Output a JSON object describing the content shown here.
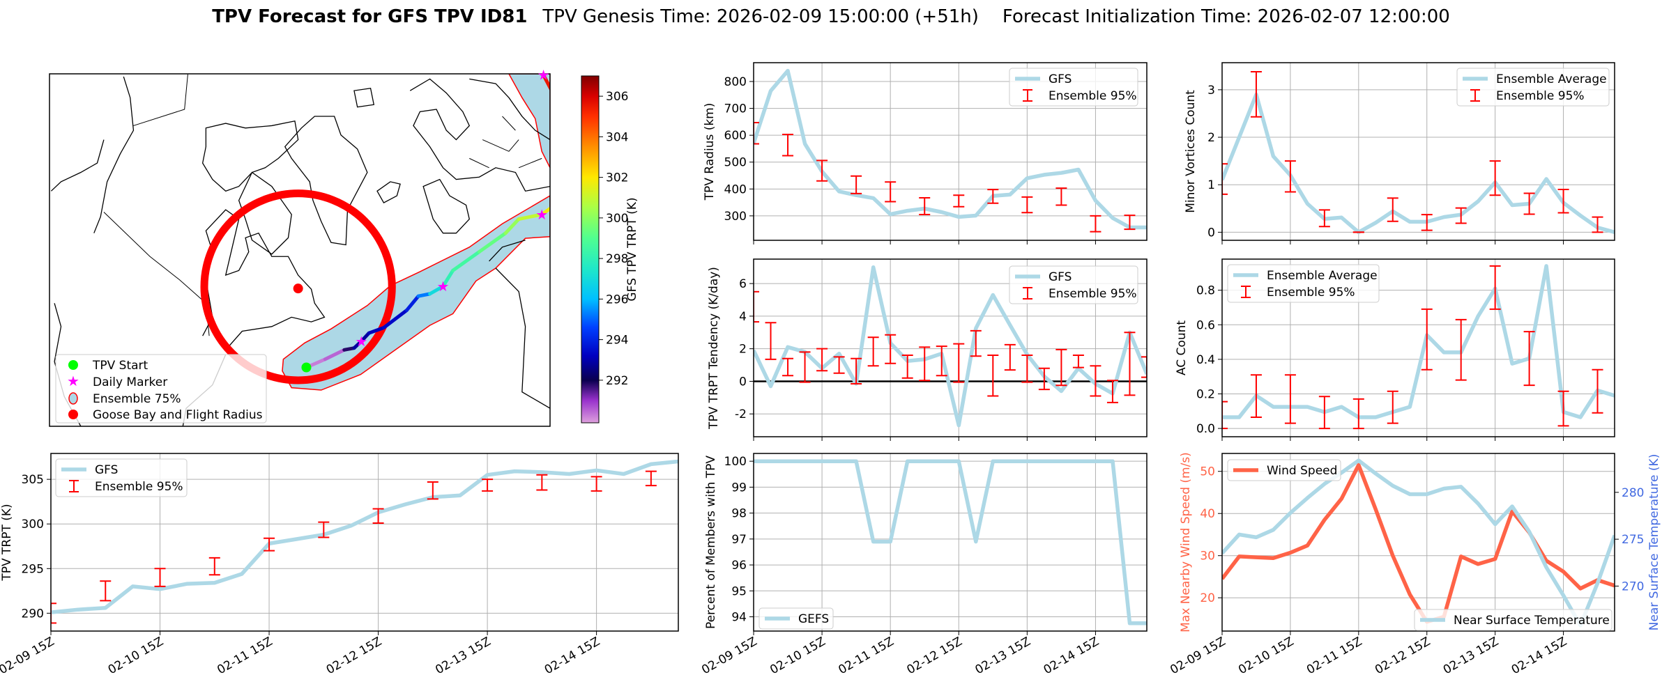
{
  "title": {
    "bold": "TPV Forecast for GFS TPV ID81",
    "genesis": "TPV Genesis Time: 2026-02-09 15:00:00 (+51h)",
    "init": "Forecast Initialization Time: 2026-02-07 12:00:00"
  },
  "colors": {
    "gfs_line": "#add8e6",
    "ensemble_bar": "#ff0000",
    "wind": "#ff6347",
    "temperature_axis": "#4169e1",
    "zero_line": "#000000"
  },
  "map": {
    "legend": [
      "TPV Start",
      "Daily Marker",
      "Ensemble 75%",
      "Goose Bay and Flight Radius"
    ],
    "colorbar": {
      "label": "GFS TPV TRPT (K)",
      "ticks": [
        "292",
        "294",
        "296",
        "298",
        "300",
        "302",
        "304",
        "306"
      ],
      "range": [
        289.9,
        307.0
      ]
    }
  },
  "chart_data": [
    {
      "id": "radius",
      "type": "line",
      "x": [
        "02-09 15Z",
        "02-09 21Z",
        "02-10 03Z",
        "02-10 09Z",
        "02-10 15Z",
        "02-10 21Z",
        "02-11 03Z",
        "02-11 09Z",
        "02-11 15Z",
        "02-11 21Z",
        "02-12 03Z",
        "02-12 09Z",
        "02-12 15Z",
        "02-12 21Z",
        "02-13 03Z",
        "02-13 09Z",
        "02-13 15Z",
        "02-13 21Z",
        "02-14 03Z",
        "02-14 09Z",
        "02-14 15Z",
        "02-14 21Z",
        "02-15 03Z",
        "02-15 09Z"
      ],
      "xticks": [],
      "ylabel": "TPV Radius (km)",
      "yticks": [
        300,
        400,
        500,
        600,
        700,
        800
      ],
      "ylim": [
        209,
        870
      ],
      "grid": true,
      "legend": "upper right",
      "series": [
        {
          "name": "GFS",
          "values": [
            570,
            765,
            840,
            568,
            465,
            391,
            377,
            366,
            306,
            319,
            327,
            314,
            296,
            301,
            374,
            379,
            440,
            453,
            460,
            472,
            357,
            292,
            257,
            257
          ]
        }
      ],
      "errorbars": {
        "name": "Ensemble 95%",
        "ranges": [
          [
            568,
            647
          ],
          null,
          [
            524,
            603
          ],
          null,
          [
            430,
            506
          ],
          null,
          [
            383,
            448
          ],
          null,
          [
            353,
            426
          ],
          null,
          [
            305,
            367
          ],
          null,
          [
            334,
            377
          ],
          null,
          [
            347,
            398
          ],
          null,
          [
            312,
            370
          ],
          null,
          [
            340,
            403
          ],
          null,
          [
            241,
            300
          ],
          null,
          [
            250,
            302
          ],
          null
        ]
      }
    },
    {
      "id": "tendency",
      "type": "line",
      "xticks": [],
      "ylabel": "TPV TRPT Tendency (K/day)",
      "yticks": [
        -2,
        0,
        2,
        4,
        6
      ],
      "ylim": [
        -3.4,
        7.5
      ],
      "grid": true,
      "legend": "upper right",
      "reference_line": 0,
      "series": [
        {
          "name": "GFS",
          "values": [
            1.9,
            -0.3,
            2.1,
            1.8,
            0.8,
            1.7,
            -0.15,
            7.0,
            2.35,
            1.25,
            1.35,
            1.7,
            -2.7,
            3.25,
            5.3,
            3.45,
            1.65,
            0.3,
            -0.6,
            0.8,
            -0.15,
            -0.75,
            3.0,
            0.45
          ]
        }
      ],
      "errorbars": {
        "name": "Ensemble 95%",
        "ranges": [
          [
            3.65,
            5.5
          ],
          [
            1.35,
            3.6
          ],
          [
            0.35,
            1.4
          ],
          [
            -0.05,
            1.8
          ],
          [
            0.65,
            2.0
          ],
          [
            0.5,
            1.5
          ],
          [
            -0.15,
            1.4
          ],
          [
            0.95,
            2.7
          ],
          [
            1.1,
            2.85
          ],
          [
            0.2,
            1.6
          ],
          [
            0.05,
            2.1
          ],
          [
            0.35,
            2.15
          ],
          [
            -0.05,
            2.3
          ],
          [
            1.55,
            3.1
          ],
          [
            -0.9,
            1.6
          ],
          [
            0.7,
            2.25
          ],
          [
            -0.05,
            1.6
          ],
          [
            -0.5,
            0.8
          ],
          [
            -0.25,
            1.95
          ],
          [
            0.85,
            1.6
          ],
          [
            -0.9,
            0.95
          ],
          [
            -1.3,
            0.05
          ],
          [
            -0.85,
            3.0
          ],
          [
            0.25,
            1.5
          ]
        ]
      }
    },
    {
      "id": "percent",
      "type": "line",
      "xticks": [
        "02-09 15Z",
        "02-10 15Z",
        "02-11 15Z",
        "02-12 15Z",
        "02-13 15Z",
        "02-14 15Z"
      ],
      "ylabel": "Percent of Members with TPV",
      "yticks": [
        94,
        95,
        96,
        97,
        98,
        99,
        100
      ],
      "ylim": [
        93.45,
        100.3
      ],
      "grid": true,
      "legend": "lower left",
      "series": [
        {
          "name": "GEFS",
          "values": [
            100,
            100,
            100,
            100,
            100,
            100,
            100,
            96.9,
            96.9,
            100,
            100,
            100,
            100,
            96.9,
            100,
            100,
            100,
            100,
            100,
            100,
            100,
            100,
            93.75,
            93.75
          ]
        }
      ]
    },
    {
      "id": "minor",
      "type": "line",
      "xticks": [],
      "ylabel": "Minor Vortices Count",
      "yticks": [
        0,
        1,
        2,
        3
      ],
      "ylim": [
        -0.17,
        3.57
      ],
      "grid": true,
      "legend": "upper right",
      "series": [
        {
          "name": "Ensemble Average",
          "values": [
            1.1,
            2.0,
            2.9,
            1.6,
            1.2,
            0.6,
            0.28,
            0.31,
            0.0,
            0.2,
            0.44,
            0.22,
            0.22,
            0.32,
            0.37,
            0.65,
            1.05,
            0.57,
            0.6,
            1.12,
            0.62,
            0.35,
            0.1,
            0.0
          ]
        }
      ],
      "errorbars": {
        "name": "Ensemble 95%",
        "ranges": [
          [
            0.8,
            1.44
          ],
          null,
          [
            2.43,
            3.38
          ],
          null,
          [
            0.85,
            1.5
          ],
          null,
          [
            0.12,
            0.47
          ],
          null,
          [
            0,
            0
          ],
          null,
          [
            0.23,
            0.72
          ],
          null,
          [
            0.04,
            0.37
          ],
          null,
          [
            0.19,
            0.51
          ],
          null,
          [
            0.78,
            1.5
          ],
          null,
          [
            0.38,
            0.82
          ],
          null,
          [
            0.41,
            0.9
          ],
          null,
          [
            0,
            0.32
          ],
          null
        ]
      }
    },
    {
      "id": "ac",
      "type": "line",
      "xticks": [],
      "ylabel": "AC Count",
      "yticks": [
        "0.0",
        "0.2",
        "0.4",
        "0.6",
        "0.8"
      ],
      "ylim": [
        -0.048,
        0.98
      ],
      "grid": true,
      "legend": "upper left",
      "series": [
        {
          "name": "Ensemble Average",
          "values": [
            0.065,
            0.065,
            0.19,
            0.125,
            0.125,
            0.125,
            0.095,
            0.125,
            0.065,
            0.065,
            0.095,
            0.125,
            0.54,
            0.44,
            0.44,
            0.65,
            0.81,
            0.375,
            0.405,
            0.94,
            0.095,
            0.065,
            0.22,
            0.19
          ]
        }
      ],
      "errorbars": {
        "name": "Ensemble 95%",
        "ranges": [
          [
            0,
            0.155
          ],
          null,
          [
            0.065,
            0.31
          ],
          null,
          [
            0.03,
            0.31
          ],
          null,
          [
            0,
            0.185
          ],
          null,
          [
            0,
            0.17
          ],
          null,
          [
            0.03,
            0.215
          ],
          null,
          [
            0.34,
            0.69
          ],
          null,
          [
            0.28,
            0.63
          ],
          null,
          [
            0.69,
            0.94
          ],
          null,
          [
            0.25,
            0.56
          ],
          null,
          [
            0.015,
            0.215
          ],
          null,
          [
            0.09,
            0.34
          ],
          null
        ]
      }
    },
    {
      "id": "wind",
      "type": "line",
      "xticks": [
        "02-09 15Z",
        "02-10 15Z",
        "02-11 15Z",
        "02-12 15Z",
        "02-13 15Z",
        "02-14 15Z"
      ],
      "ylabel": "Max Nearby Wind Speed (m/s)",
      "yticks": [
        20,
        30,
        40,
        50
      ],
      "ylim": [
        12.1,
        54.25
      ],
      "ylabel2": "Near Surface Temperature (K)",
      "yticks2": [
        270,
        275,
        280
      ],
      "ylim2": [
        265.2,
        284.15
      ],
      "grid": true,
      "series": [
        {
          "name": "Wind Speed",
          "axis": "left",
          "values": [
            24.5,
            29.8,
            29.6,
            29.4,
            30.7,
            32.4,
            38.5,
            43.5,
            51.5,
            41,
            30,
            20.8,
            14.3,
            15.5,
            29.8,
            28,
            29.2,
            40.5,
            35.5,
            28.8,
            26.2,
            22.2,
            24.2,
            22.9
          ]
        },
        {
          "name": "Near Surface Temperature",
          "axis": "right",
          "values": [
            273.5,
            275.5,
            275.2,
            276.0,
            277.8,
            279.4,
            280.9,
            282.1,
            283.4,
            282.0,
            280.7,
            279.8,
            279.8,
            280.4,
            280.6,
            278.8,
            276.6,
            278.5,
            275.8,
            272.0,
            269.0,
            265.8,
            270.3,
            275.4
          ]
        }
      ]
    },
    {
      "id": "trpt",
      "type": "line",
      "xticks": [
        "02-09 15Z",
        "02-10 15Z",
        "02-11 15Z",
        "02-12 15Z",
        "02-13 15Z",
        "02-14 15Z"
      ],
      "ylabel": "TPV TRPT (K)",
      "yticks": [
        290,
        295,
        300,
        305
      ],
      "ylim": [
        288.0,
        307.9
      ],
      "grid": true,
      "legend": "upper left",
      "series": [
        {
          "name": "GFS",
          "values": [
            290.1,
            290.4,
            290.6,
            293.0,
            292.7,
            293.3,
            293.4,
            294.4,
            297.8,
            298.3,
            298.8,
            299.8,
            301.3,
            302.2,
            303.0,
            303.2,
            305.5,
            305.9,
            305.8,
            305.6,
            306.0,
            305.6,
            306.7,
            307.0
          ]
        }
      ],
      "errorbars": {
        "name": "Ensemble 95%",
        "ranges": [
          [
            288.9,
            291.1
          ],
          null,
          [
            291.4,
            293.6
          ],
          null,
          [
            293.0,
            295.0
          ],
          null,
          [
            294.3,
            296.2
          ],
          null,
          [
            297.0,
            298.4
          ],
          null,
          [
            298.5,
            300.2
          ],
          null,
          [
            300.1,
            301.7
          ],
          null,
          [
            302.8,
            304.7
          ],
          null,
          [
            303.7,
            305.0
          ],
          null,
          [
            303.8,
            305.5
          ],
          null,
          [
            303.7,
            305.3
          ],
          null,
          [
            304.3,
            305.9
          ],
          null
        ]
      }
    }
  ]
}
